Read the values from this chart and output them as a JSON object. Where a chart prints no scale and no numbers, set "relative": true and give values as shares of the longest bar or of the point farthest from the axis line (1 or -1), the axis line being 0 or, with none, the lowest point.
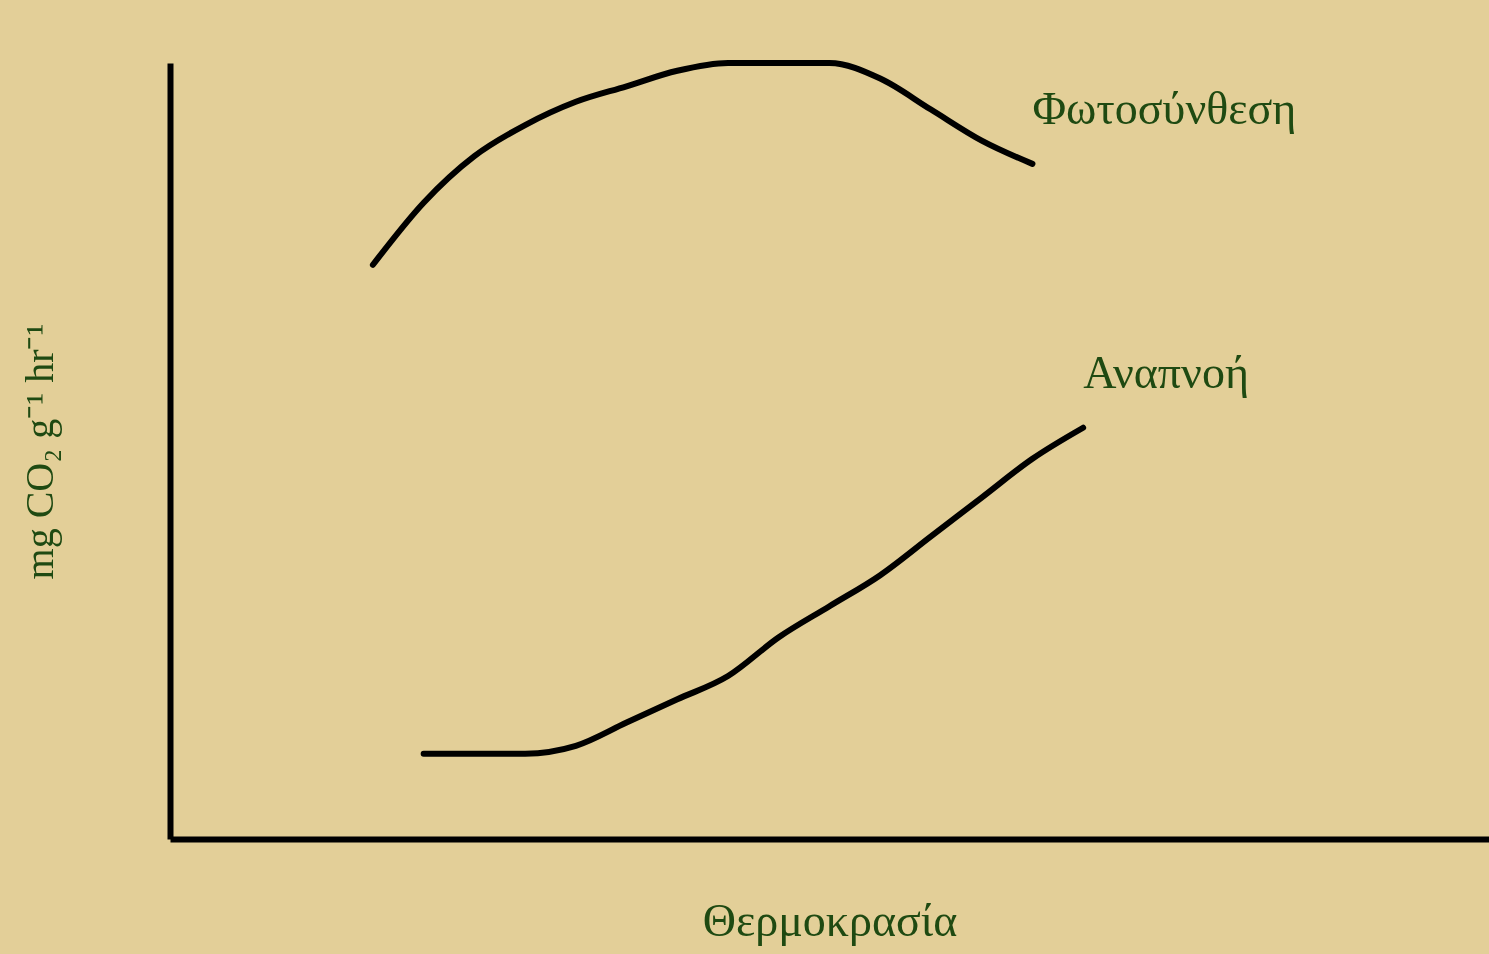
{
  "chart_data": {
    "type": "line",
    "relative": true,
    "xlabel": "Θερμοκρασία",
    "ylabel": "mg CO₂ g⁻¹ hr⁻¹",
    "grid": false,
    "marker": "none",
    "line_style": "solid",
    "categories": [
      null,
      null,
      null,
      null,
      null,
      null,
      null,
      null,
      null,
      null,
      null,
      null,
      null,
      null,
      null,
      null,
      null,
      null,
      null,
      null,
      null,
      null,
      null,
      null,
      null,
      null,
      null
    ],
    "series": [
      {
        "name": "Φωτοσύνθεση",
        "color": "#000000",
        "values": [
          null,
          null,
          null,
          null,
          0.74,
          0.82,
          0.88,
          0.92,
          0.95,
          0.97,
          0.99,
          1.0,
          1.0,
          1.0,
          0.98,
          0.94,
          0.9,
          0.87,
          null,
          null,
          null,
          null,
          null,
          null,
          null,
          null,
          null
        ]
      },
      {
        "name": "Αναπνοή",
        "color": "#000000",
        "values": [
          null,
          null,
          null,
          null,
          null,
          0.11,
          0.11,
          0.11,
          0.12,
          0.15,
          0.18,
          0.21,
          0.26,
          0.3,
          0.34,
          0.39,
          0.44,
          0.49,
          0.53,
          null,
          null,
          null,
          null,
          null,
          null,
          null,
          null
        ]
      }
    ]
  }
}
